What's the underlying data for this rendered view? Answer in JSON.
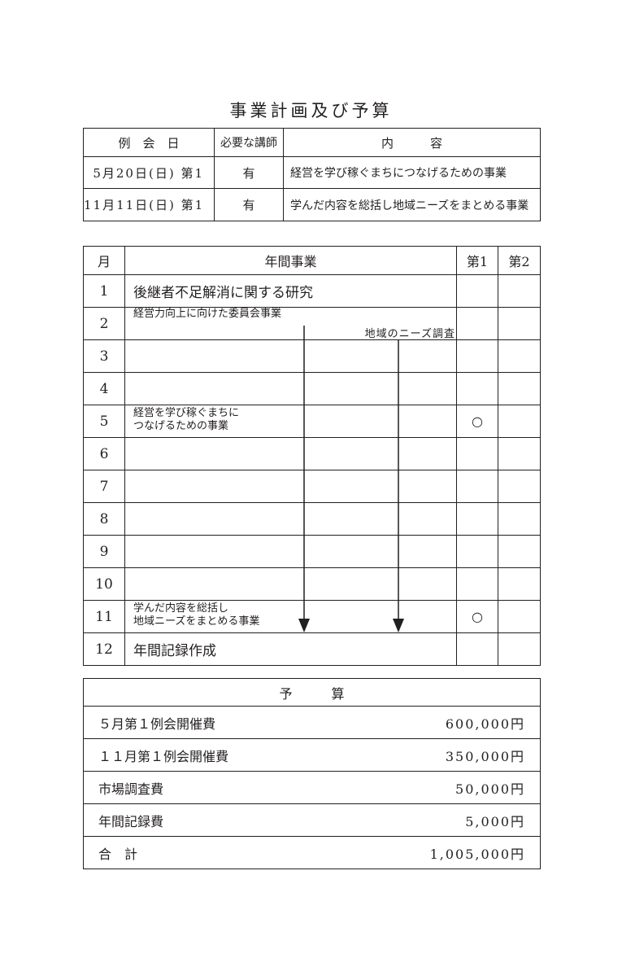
{
  "title": "事業計画及び予算",
  "meetings": {
    "headers": [
      "例　会　日",
      "必要な講師",
      "内　　　容"
    ],
    "rows": [
      {
        "date": "5月20日(日) 第1",
        "lecturer": "有",
        "content": "経営を学び稼ぐまちにつなげるための事業"
      },
      {
        "date": "11月11日(日) 第1",
        "lecturer": "有",
        "content": "学んだ内容を総括し地域ニーズをまとめる事業"
      }
    ]
  },
  "annual": {
    "headers": [
      "月",
      "年間事業",
      "第1",
      "第2"
    ],
    "rows": [
      {
        "month": "1",
        "event": "後継者不足解消に関する研究",
        "first": "",
        "second": ""
      },
      {
        "month": "2",
        "event": "経営力向上に向けた委員会事業",
        "sub": "地域のニーズ調査",
        "first": "",
        "second": ""
      },
      {
        "month": "3",
        "event": "",
        "first": "",
        "second": ""
      },
      {
        "month": "4",
        "event": "",
        "first": "",
        "second": ""
      },
      {
        "month": "5",
        "event": "経営を学び稼ぐまちに",
        "event2": "つなげるための事業",
        "first": "○",
        "second": ""
      },
      {
        "month": "6",
        "event": "",
        "first": "",
        "second": ""
      },
      {
        "month": "7",
        "event": "",
        "first": "",
        "second": ""
      },
      {
        "month": "8",
        "event": "",
        "first": "",
        "second": ""
      },
      {
        "month": "9",
        "event": "",
        "first": "",
        "second": ""
      },
      {
        "month": "10",
        "event": "",
        "first": "",
        "second": ""
      },
      {
        "month": "11",
        "event": "学んだ内容を総括し",
        "event2": "地域ニーズをまとめる事業",
        "first": "○",
        "second": ""
      },
      {
        "month": "12",
        "event": "年間記録作成",
        "first": "",
        "second": ""
      }
    ]
  },
  "budget": {
    "header": "予　　　算",
    "rows": [
      {
        "item": "５月第１例会開催費",
        "amount": "600,000円"
      },
      {
        "item": "１１月第１例会開催費",
        "amount": "350,000円"
      },
      {
        "item": "市場調査費",
        "amount": "50,000円"
      },
      {
        "item": "年間記録費",
        "amount": "5,000円"
      },
      {
        "item": "合　計",
        "amount": "1,005,000円"
      }
    ]
  }
}
